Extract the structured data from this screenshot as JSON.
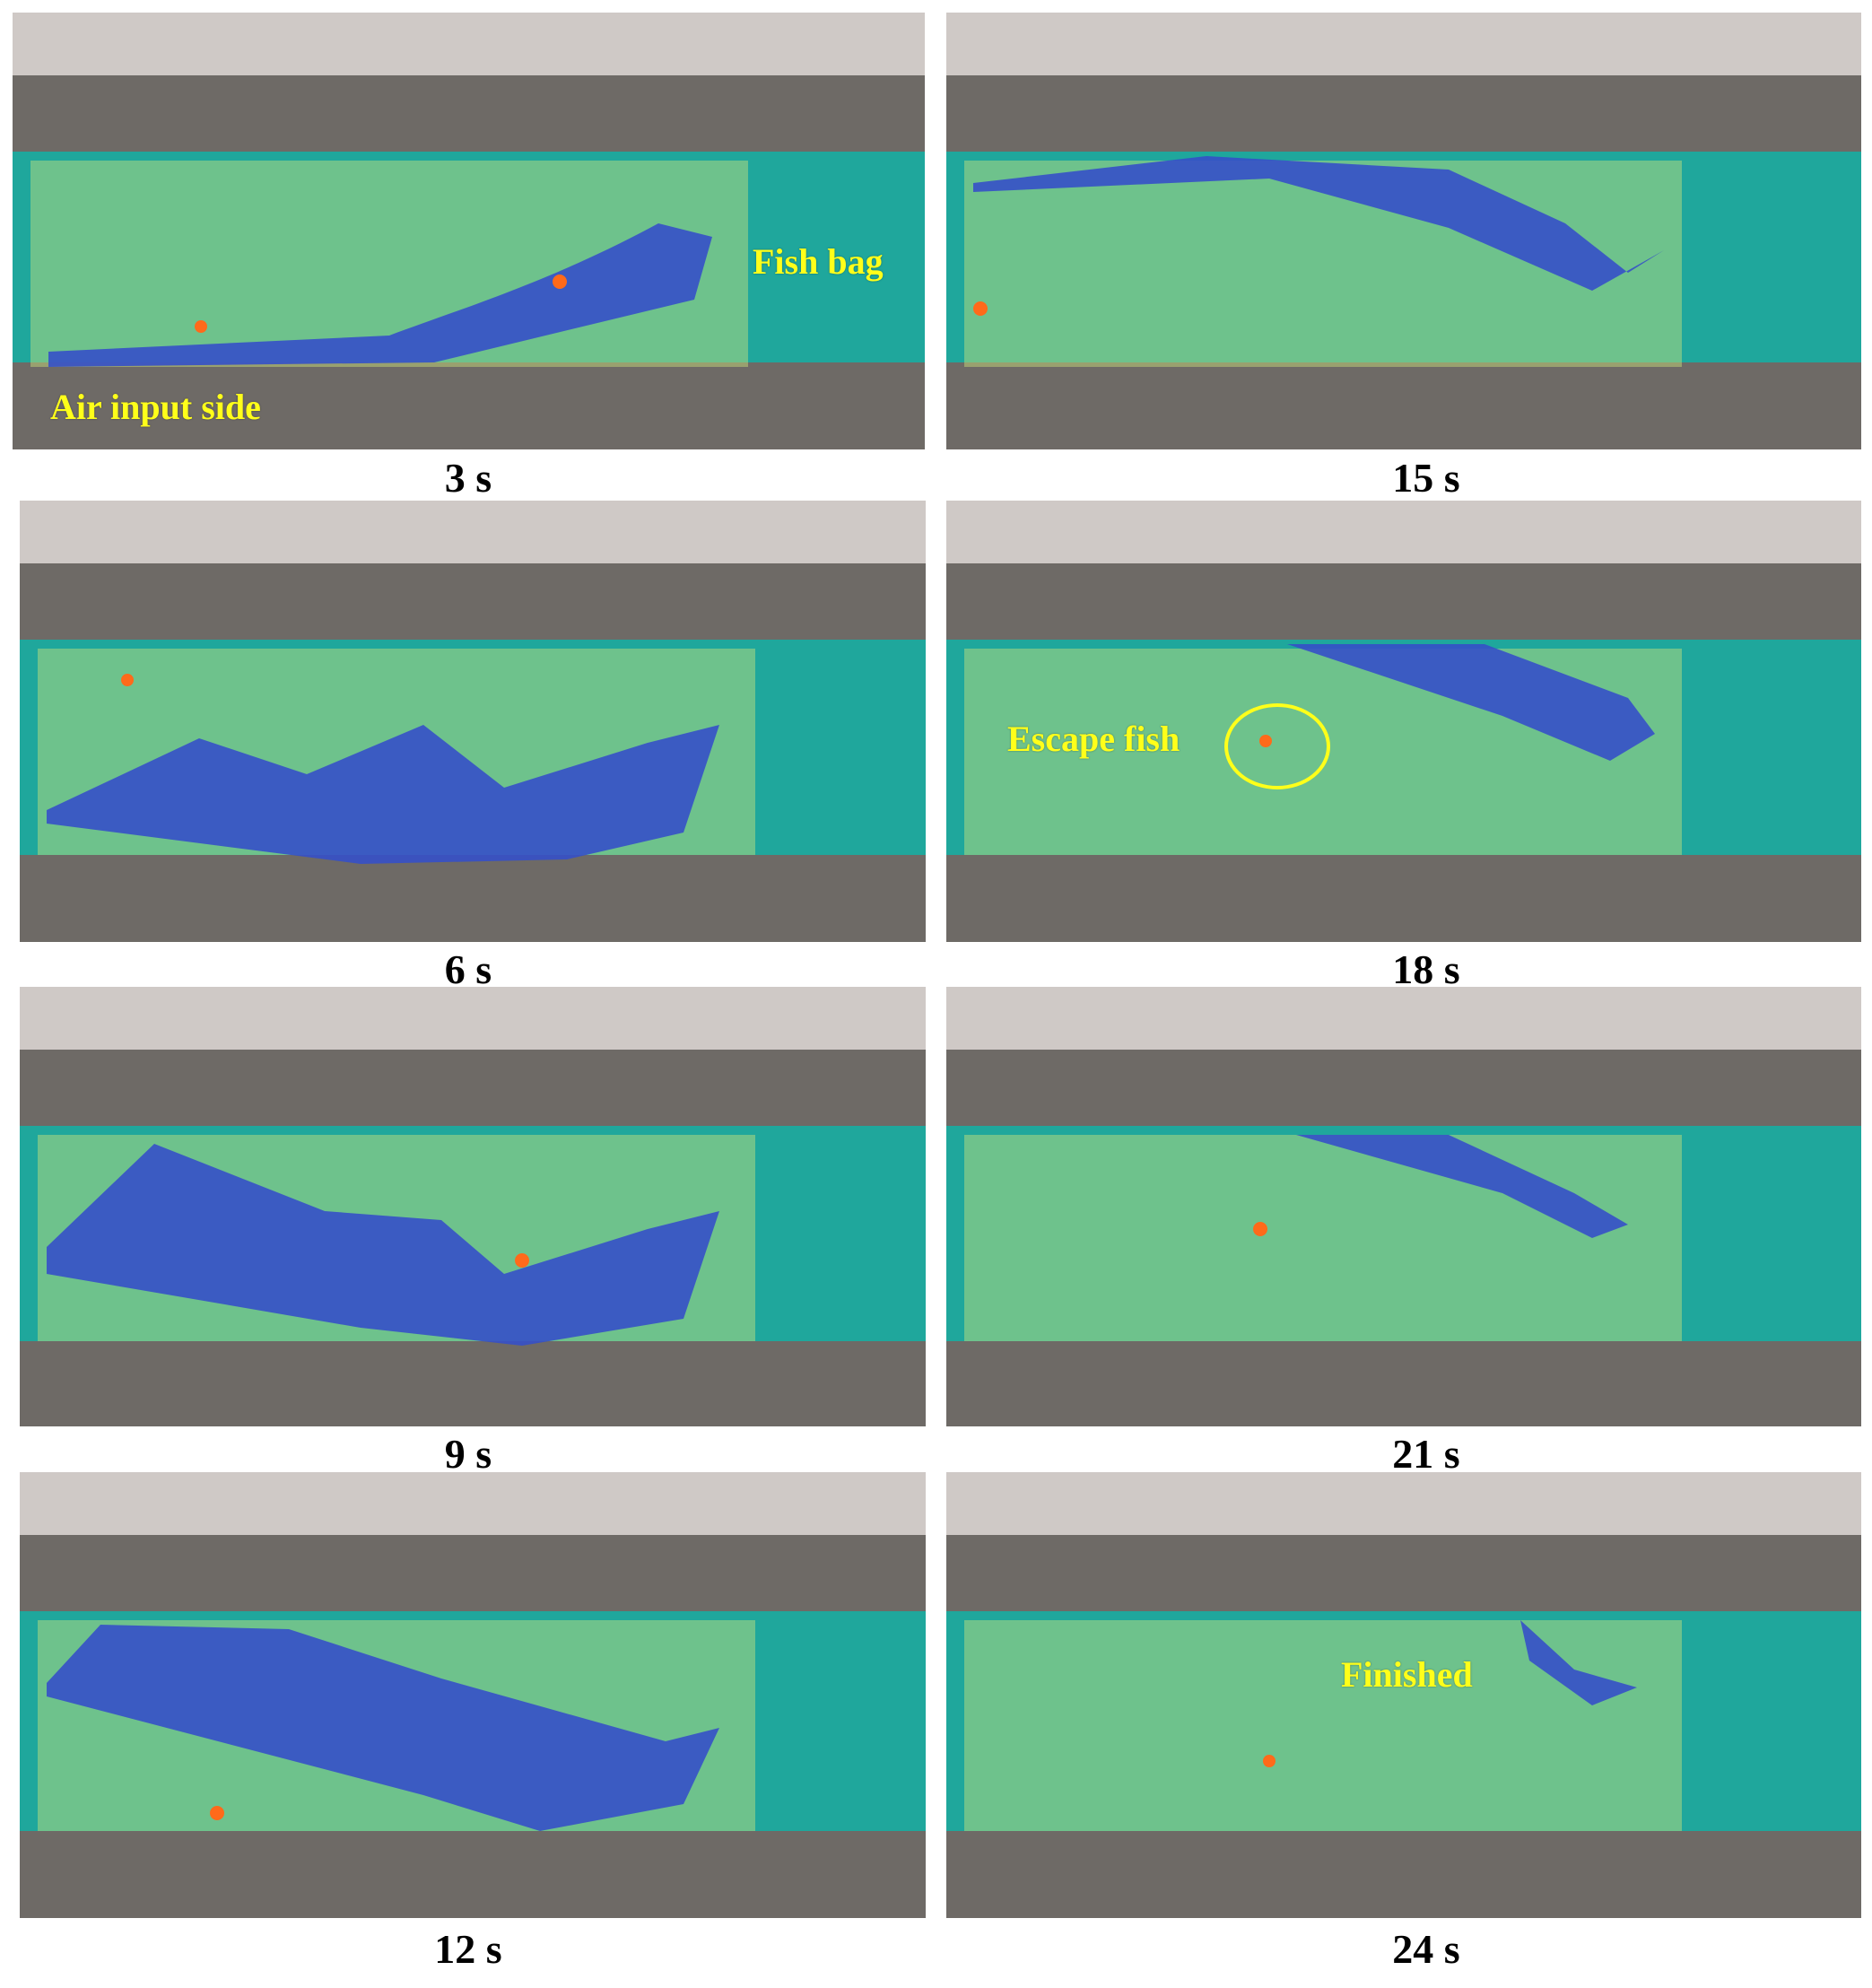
{
  "panels": [
    {
      "time": "3 s",
      "annotations": {
        "fish_bag": "Fish bag",
        "air_input": "Air input side"
      }
    },
    {
      "time": "15 s"
    },
    {
      "time": "6 s"
    },
    {
      "time": "18 s",
      "annotations": {
        "escape_fish": "Escape fish"
      }
    },
    {
      "time": "9 s"
    },
    {
      "time": "21 s"
    },
    {
      "time": "12 s"
    },
    {
      "time": "24 s",
      "annotations": {
        "finished": "Finished"
      }
    }
  ],
  "colors": {
    "water": "#1fa79c",
    "flume_frame": "#7a7670",
    "net": "#d7e84a",
    "fish_bag_membrane": "#3550c8",
    "fish": "#ff6a1a",
    "annotation_text": "#ffff1a"
  }
}
